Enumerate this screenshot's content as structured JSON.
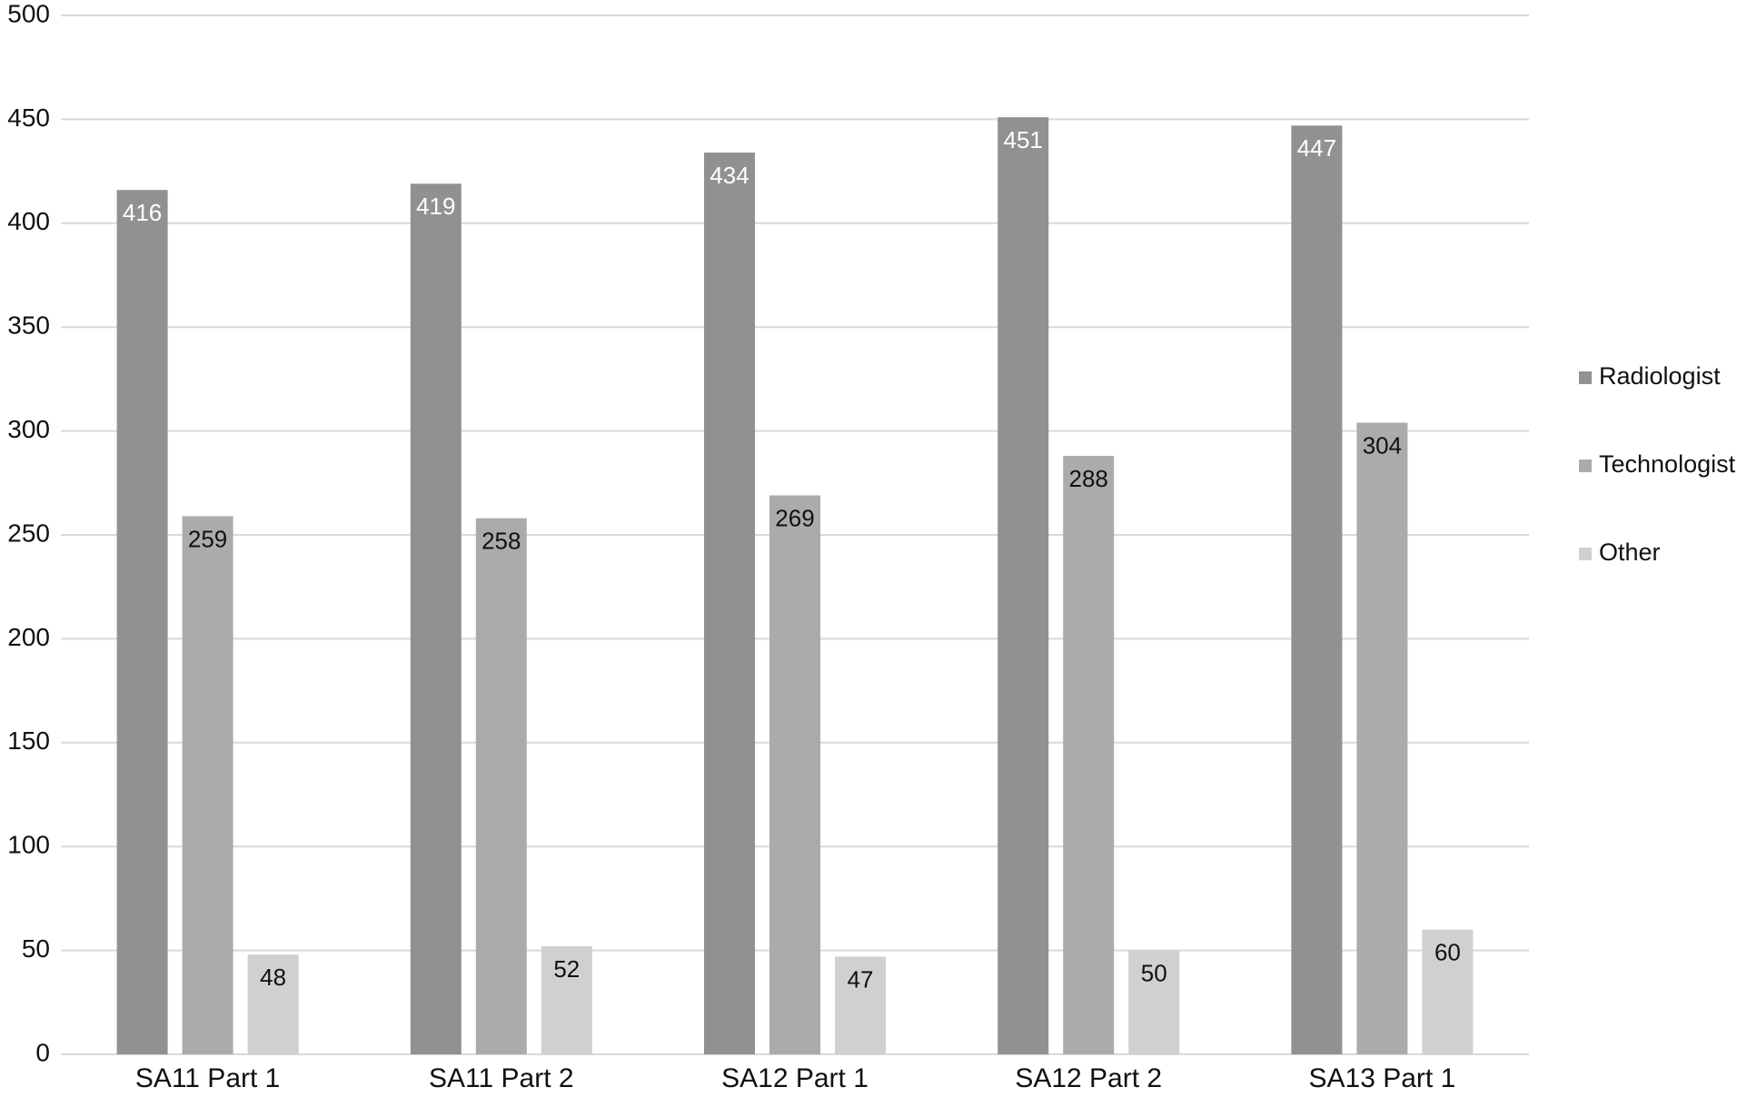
{
  "chart_data": {
    "type": "bar",
    "categories": [
      "SA11 Part 1",
      "SA11 Part 2",
      "SA12 Part 1",
      "SA12 Part 2",
      "SA13 Part 1"
    ],
    "series": [
      {
        "name": "Radiologist",
        "color": "#919191",
        "label_color": "#ffffff",
        "values": [
          416,
          419,
          434,
          451,
          447
        ]
      },
      {
        "name": "Technologist",
        "color": "#ababab",
        "label_color": "#111111",
        "values": [
          259,
          258,
          269,
          288,
          304
        ]
      },
      {
        "name": "Other",
        "color": "#d0d0d0",
        "label_color": "#111111",
        "values": [
          48,
          52,
          47,
          50,
          60
        ]
      }
    ],
    "ylim": [
      0,
      500
    ],
    "yticks": [
      0,
      50,
      100,
      150,
      200,
      250,
      300,
      350,
      400,
      450,
      500
    ],
    "grid": true,
    "legend": "right"
  }
}
